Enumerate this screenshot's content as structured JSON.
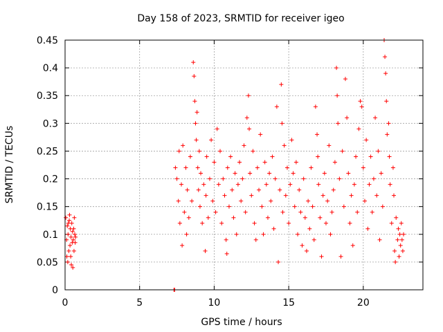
{
  "chart_data": {
    "type": "scatter",
    "title": "Day 158 of 2023, SRMTID for receiver igeo",
    "xlabel": "GPS time / hours",
    "ylabel": "SRMTID / TECUs",
    "xlim": [
      0,
      24
    ],
    "ylim": [
      0,
      0.45
    ],
    "x_ticks": [
      0,
      5,
      10,
      15,
      20
    ],
    "y_ticks": [
      0,
      0.05,
      0.1,
      0.15,
      0.2,
      0.25,
      0.3,
      0.35,
      0.4,
      0.45
    ],
    "x_tick_labels": [
      "0",
      "5",
      "10",
      "15",
      "20"
    ],
    "y_tick_labels": [
      "0",
      "0.05",
      "0.1",
      "0.15",
      "0.2",
      "0.25",
      "0.3",
      "0.35",
      "0.4",
      "0.45"
    ],
    "grid": true,
    "marker": "+",
    "color": "#ff0000",
    "series": [
      {
        "name": "SRMTID",
        "points": [
          [
            0.05,
            0.13
          ],
          [
            0.1,
            0.09
          ],
          [
            0.12,
            0.06
          ],
          [
            0.15,
            0.115
          ],
          [
            0.18,
            0.05
          ],
          [
            0.2,
            0.1
          ],
          [
            0.22,
            0.12
          ],
          [
            0.25,
            0.07
          ],
          [
            0.28,
            0.125
          ],
          [
            0.3,
            0.135
          ],
          [
            0.33,
            0.08
          ],
          [
            0.35,
            0.11
          ],
          [
            0.38,
            0.06
          ],
          [
            0.4,
            0.095
          ],
          [
            0.42,
            0.045
          ],
          [
            0.45,
            0.12
          ],
          [
            0.48,
            0.085
          ],
          [
            0.5,
            0.105
          ],
          [
            0.52,
            0.04
          ],
          [
            0.55,
            0.09
          ],
          [
            0.58,
            0.11
          ],
          [
            0.6,
            0.07
          ],
          [
            0.62,
            0.13
          ],
          [
            0.65,
            0.1
          ],
          [
            0.68,
            0.085
          ],
          [
            0.7,
            0.095
          ],
          [
            7.3,
            0.0
          ],
          [
            7.35,
            0.0
          ],
          [
            7.4,
            0.22
          ],
          [
            7.5,
            0.2
          ],
          [
            7.6,
            0.16
          ],
          [
            7.65,
            0.25
          ],
          [
            7.7,
            0.12
          ],
          [
            7.8,
            0.19
          ],
          [
            7.85,
            0.08
          ],
          [
            7.9,
            0.26
          ],
          [
            8.0,
            0.14
          ],
          [
            8.1,
            0.22
          ],
          [
            8.15,
            0.1
          ],
          [
            8.2,
            0.18
          ],
          [
            8.3,
            0.13
          ],
          [
            8.4,
            0.24
          ],
          [
            8.5,
            0.16
          ],
          [
            8.6,
            0.41
          ],
          [
            8.65,
            0.385
          ],
          [
            8.7,
            0.34
          ],
          [
            8.75,
            0.3
          ],
          [
            8.8,
            0.27
          ],
          [
            8.85,
            0.32
          ],
          [
            8.9,
            0.22
          ],
          [
            8.95,
            0.18
          ],
          [
            9.0,
            0.25
          ],
          [
            9.05,
            0.15
          ],
          [
            9.1,
            0.21
          ],
          [
            9.2,
            0.12
          ],
          [
            9.3,
            0.19
          ],
          [
            9.4,
            0.07
          ],
          [
            9.45,
            0.17
          ],
          [
            9.5,
            0.24
          ],
          [
            9.6,
            0.13
          ],
          [
            9.7,
            0.2
          ],
          [
            9.8,
            0.27
          ],
          [
            9.9,
            0.16
          ],
          [
            10.0,
            0.23
          ],
          [
            10.1,
            0.14
          ],
          [
            10.2,
            0.29
          ],
          [
            10.3,
            0.19
          ],
          [
            10.4,
            0.25
          ],
          [
            10.5,
            0.12
          ],
          [
            10.6,
            0.2
          ],
          [
            10.7,
            0.17
          ],
          [
            10.8,
            0.09
          ],
          [
            10.85,
            0.065
          ],
          [
            10.9,
            0.22
          ],
          [
            11.0,
            0.15
          ],
          [
            11.1,
            0.24
          ],
          [
            11.2,
            0.18
          ],
          [
            11.3,
            0.13
          ],
          [
            11.4,
            0.21
          ],
          [
            11.5,
            0.1
          ],
          [
            11.6,
            0.19
          ],
          [
            11.7,
            0.23
          ],
          [
            11.8,
            0.16
          ],
          [
            11.9,
            0.2
          ],
          [
            12.0,
            0.26
          ],
          [
            12.1,
            0.14
          ],
          [
            12.2,
            0.31
          ],
          [
            12.3,
            0.35
          ],
          [
            12.35,
            0.29
          ],
          [
            12.4,
            0.21
          ],
          [
            12.5,
            0.17
          ],
          [
            12.6,
            0.25
          ],
          [
            12.7,
            0.12
          ],
          [
            12.8,
            0.09
          ],
          [
            12.9,
            0.22
          ],
          [
            13.0,
            0.18
          ],
          [
            13.1,
            0.28
          ],
          [
            13.2,
            0.15
          ],
          [
            13.3,
            0.1
          ],
          [
            13.4,
            0.23
          ],
          [
            13.5,
            0.19
          ],
          [
            13.6,
            0.13
          ],
          [
            13.7,
            0.21
          ],
          [
            13.8,
            0.16
          ],
          [
            13.9,
            0.24
          ],
          [
            14.0,
            0.11
          ],
          [
            14.1,
            0.2
          ],
          [
            14.2,
            0.33
          ],
          [
            14.3,
            0.05
          ],
          [
            14.4,
            0.18
          ],
          [
            14.5,
            0.37
          ],
          [
            14.55,
            0.3
          ],
          [
            14.6,
            0.14
          ],
          [
            14.7,
            0.26
          ],
          [
            14.8,
            0.17
          ],
          [
            14.9,
            0.22
          ],
          [
            15.0,
            0.12
          ],
          [
            15.1,
            0.19
          ],
          [
            15.2,
            0.27
          ],
          [
            15.3,
            0.21
          ],
          [
            15.4,
            0.15
          ],
          [
            15.5,
            0.23
          ],
          [
            15.6,
            0.1
          ],
          [
            15.7,
            0.18
          ],
          [
            15.8,
            0.14
          ],
          [
            15.9,
            0.08
          ],
          [
            16.0,
            0.2
          ],
          [
            16.1,
            0.13
          ],
          [
            16.2,
            0.07
          ],
          [
            16.3,
            0.16
          ],
          [
            16.4,
            0.11
          ],
          [
            16.5,
            0.22
          ],
          [
            16.6,
            0.15
          ],
          [
            16.7,
            0.09
          ],
          [
            16.8,
            0.33
          ],
          [
            16.9,
            0.28
          ],
          [
            16.95,
            0.24
          ],
          [
            17.0,
            0.19
          ],
          [
            17.1,
            0.13
          ],
          [
            17.2,
            0.06
          ],
          [
            17.3,
            0.17
          ],
          [
            17.4,
            0.21
          ],
          [
            17.5,
            0.12
          ],
          [
            17.6,
            0.16
          ],
          [
            17.7,
            0.26
          ],
          [
            17.8,
            0.1
          ],
          [
            17.9,
            0.14
          ],
          [
            18.0,
            0.18
          ],
          [
            18.1,
            0.23
          ],
          [
            18.2,
            0.4
          ],
          [
            18.25,
            0.35
          ],
          [
            18.3,
            0.3
          ],
          [
            18.4,
            0.2
          ],
          [
            18.5,
            0.06
          ],
          [
            18.6,
            0.25
          ],
          [
            18.7,
            0.15
          ],
          [
            18.8,
            0.38
          ],
          [
            18.9,
            0.31
          ],
          [
            19.0,
            0.21
          ],
          [
            19.1,
            0.12
          ],
          [
            19.2,
            0.17
          ],
          [
            19.3,
            0.08
          ],
          [
            19.4,
            0.19
          ],
          [
            19.5,
            0.24
          ],
          [
            19.6,
            0.14
          ],
          [
            19.7,
            0.29
          ],
          [
            19.8,
            0.34
          ],
          [
            19.9,
            0.33
          ],
          [
            20.0,
            0.22
          ],
          [
            20.1,
            0.16
          ],
          [
            20.2,
            0.27
          ],
          [
            20.3,
            0.11
          ],
          [
            20.4,
            0.19
          ],
          [
            20.5,
            0.24
          ],
          [
            20.6,
            0.14
          ],
          [
            20.7,
            0.2
          ],
          [
            20.8,
            0.31
          ],
          [
            20.9,
            0.17
          ],
          [
            21.0,
            0.25
          ],
          [
            21.1,
            0.09
          ],
          [
            21.2,
            0.21
          ],
          [
            21.3,
            0.15
          ],
          [
            21.4,
            0.45
          ],
          [
            21.45,
            0.42
          ],
          [
            21.5,
            0.39
          ],
          [
            21.55,
            0.34
          ],
          [
            21.6,
            0.28
          ],
          [
            21.7,
            0.3
          ],
          [
            21.75,
            0.24
          ],
          [
            21.8,
            0.19
          ],
          [
            21.9,
            0.12
          ],
          [
            22.0,
            0.22
          ],
          [
            22.05,
            0.17
          ],
          [
            22.1,
            0.07
          ],
          [
            22.15,
            0.05
          ],
          [
            22.2,
            0.13
          ],
          [
            22.3,
            0.09
          ],
          [
            22.35,
            0.11
          ],
          [
            22.4,
            0.06
          ],
          [
            22.45,
            0.1
          ],
          [
            22.5,
            0.08
          ],
          [
            22.55,
            0.12
          ],
          [
            22.6,
            0.09
          ],
          [
            22.65,
            0.07
          ],
          [
            22.7,
            0.1
          ]
        ]
      }
    ]
  }
}
